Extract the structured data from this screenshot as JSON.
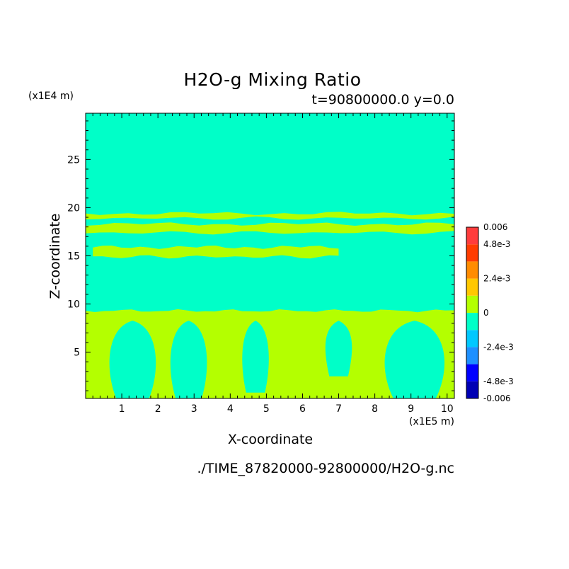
{
  "chart_data": {
    "type": "heatmap",
    "title": "H2O-g Mixing Ratio",
    "subtitle": "t=90800000.0 y=0.0",
    "xlabel": "X-coordinate",
    "ylabel": "Z-coordinate",
    "x_unit": "(x1E5 m)",
    "z_unit": "(x1E4 m)",
    "xlim": [
      0,
      10.2
    ],
    "zlim": [
      0.2,
      29.8
    ],
    "x_ticks": [
      1,
      2,
      3,
      4,
      5,
      6,
      7,
      8,
      9,
      10
    ],
    "z_ticks": [
      5,
      10,
      15,
      20,
      25
    ],
    "grid": false,
    "colorbar": {
      "position": "right",
      "levels": [
        -0.006,
        -0.0048,
        -0.0036,
        -0.0024,
        -0.0012,
        0,
        0.0012,
        0.0024,
        0.0036,
        0.0048,
        0.006
      ],
      "colors": [
        "#0000b4",
        "#0000ff",
        "#1e90ff",
        "#00c8ff",
        "#00ffc8",
        "#b4ff00",
        "#ffc800",
        "#ff8c00",
        "#ff3c00",
        "#ff3c3c"
      ],
      "labels": [
        "0.006",
        "4.8e-3",
        "2.4e-3",
        "0",
        "-2.4e-3",
        "-4.8e-3",
        "-0.006"
      ]
    },
    "background_level_color": "#00ffc8",
    "feature_level_color": "#b4ff00",
    "bands": [
      {
        "x": [
          0,
          10.2
        ],
        "z": [
          18.9,
          19.4
        ]
      },
      {
        "x": [
          0,
          10.2
        ],
        "z": [
          17.4,
          18.3
        ]
      },
      {
        "x": [
          0.2,
          7.0
        ],
        "z": [
          14.9,
          15.9
        ]
      }
    ],
    "lower_boundary_top_z": 9.3,
    "plumes": [
      {
        "x_left": 0.6,
        "x_right": 2.0,
        "z_bottom": 0.2
      },
      {
        "x_left": 2.3,
        "x_right": 3.4,
        "z_bottom": 0.2
      },
      {
        "x_left": 4.3,
        "x_right": 5.1,
        "z_bottom": 0.8
      },
      {
        "x_left": 6.6,
        "x_right": 7.4,
        "z_bottom": 2.5
      },
      {
        "x_left": 8.2,
        "x_right": 10.0,
        "z_bottom": 0.2
      }
    ]
  },
  "footer": {
    "filename": "./TIME_87820000-92800000/H2O-g.nc"
  }
}
